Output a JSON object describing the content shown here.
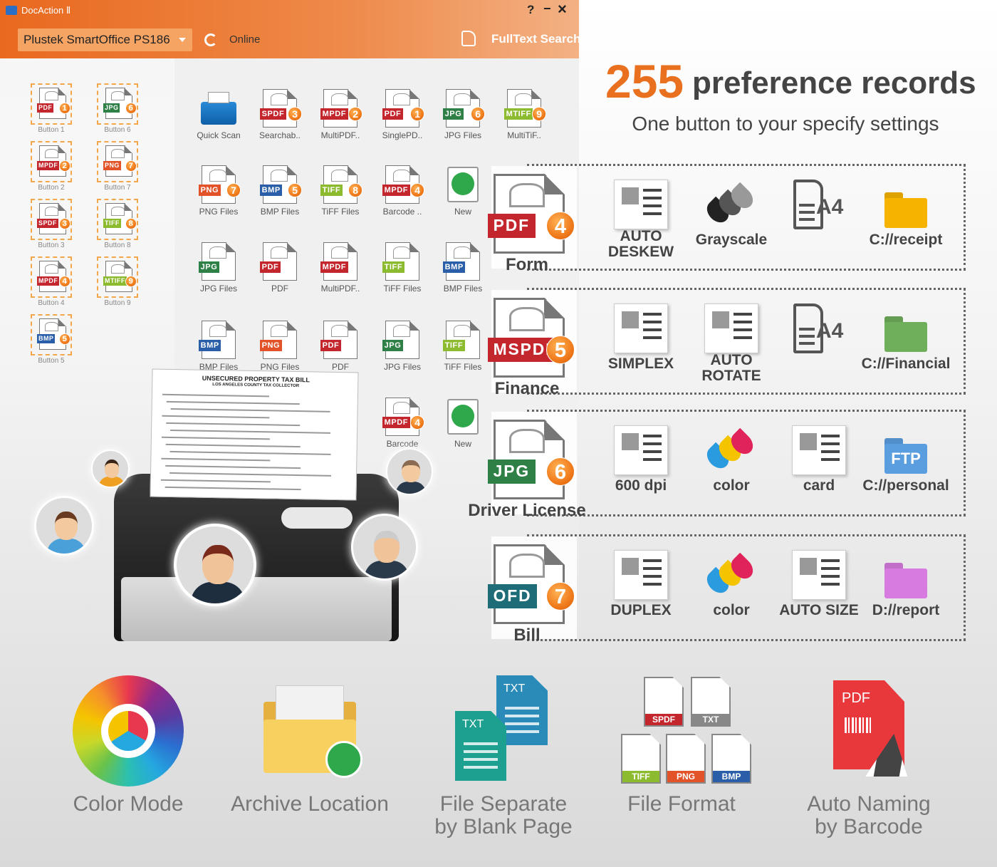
{
  "window": {
    "title": "DocAction Ⅱ",
    "help": "?",
    "minimize": "−",
    "close": "×",
    "device": "Plustek SmartOffice PS186",
    "status": "Online",
    "search": "FullText Search"
  },
  "badge_colors": {
    "PDF": "#c4262e",
    "SPDF": "#c4262e",
    "MPDF": "#c4262e",
    "MSPDF": "#c4262e",
    "JPG": "#2f8047",
    "PNG": "#e2532a",
    "TIFF": "#8dbb2f",
    "MTIFF": "#8dbb2f",
    "BMP": "#2a5ea8",
    "OFD": "#1d6c78"
  },
  "buttons": [
    {
      "badge": "PDF",
      "number": 1,
      "label": "Button 1"
    },
    {
      "badge": "JPG",
      "number": 6,
      "label": "Button 6"
    },
    {
      "badge": "MPDF",
      "number": 2,
      "label": "Button 2"
    },
    {
      "badge": "PNG",
      "number": 7,
      "label": "Button 7"
    },
    {
      "badge": "SPDF",
      "number": 3,
      "label": "Button 3"
    },
    {
      "badge": "TIFF",
      "number": 8,
      "label": "Button 8"
    },
    {
      "badge": "MPDF",
      "number": 4,
      "label": "Button 4"
    },
    {
      "badge": "MTIFF",
      "number": 9,
      "label": "Button 9"
    },
    {
      "badge": "BMP",
      "number": 5,
      "label": "Button 5"
    }
  ],
  "grid": {
    "rows": [
      [
        {
          "label": "Quick Scan"
        },
        {
          "badge": "SPDF",
          "number": 3,
          "label": "Searchab.."
        },
        {
          "badge": "MPDF",
          "number": 2,
          "label": "MultiPDF.."
        },
        {
          "badge": "PDF",
          "number": 1,
          "label": "SinglePD.."
        },
        {
          "badge": "JPG",
          "number": 6,
          "label": "JPG Files"
        },
        {
          "badge": "MTIFF",
          "number": 9,
          "label": "MultiTiF.."
        }
      ],
      [
        {
          "badge": "PNG",
          "number": 7,
          "label": "PNG Files"
        },
        {
          "badge": "BMP",
          "number": 5,
          "label": "BMP Files"
        },
        {
          "badge": "TIFF",
          "number": 8,
          "label": "TiFF Files"
        },
        {
          "badge": "MPDF",
          "number": 4,
          "label": "Barcode .."
        },
        {
          "label": "New"
        }
      ],
      [
        {
          "badge": "JPG",
          "label": "JPG Files"
        },
        {
          "badge": "PDF",
          "label": "PDF"
        },
        {
          "badge": "MPDF",
          "label": "MultiPDF.."
        },
        {
          "badge": "TIFF",
          "label": "TiFF Files"
        },
        {
          "badge": "BMP",
          "label": "BMP Files"
        }
      ],
      [
        {
          "badge": "BMP",
          "label": "BMP Files"
        },
        {
          "badge": "PNG",
          "label": "PNG Files"
        },
        {
          "badge": "PDF",
          "label": "PDF"
        },
        {
          "badge": "JPG",
          "label": "JPG Files"
        },
        {
          "badge": "TIFF",
          "label": "TiFF Files"
        }
      ],
      [
        {
          "badge": "MPDF",
          "number": 4,
          "label": "Barcode"
        },
        {
          "label": "New"
        }
      ]
    ]
  },
  "bill": {
    "title": "UNSECURED PROPERTY TAX BILL",
    "subtitle": "LOS ANGELES COUNTY TAX COLLECTOR"
  },
  "headline": {
    "number": "255",
    "text": "preference records",
    "subtitle": "One button to your specify settings"
  },
  "profiles": [
    {
      "badge": "PDF",
      "number": 4,
      "name": "Form",
      "folder_color": "#f6b400",
      "settings": [
        {
          "label": [
            "AUTO",
            "DESKEW"
          ]
        },
        {
          "label": "Grayscale",
          "colors": [
            "#222222",
            "#555555",
            "#999999"
          ]
        },
        {
          "label": "",
          "icon_text": "A4"
        },
        {
          "label": "C://receipt"
        }
      ]
    },
    {
      "badge": "MSPDF",
      "number": 5,
      "name": "Finance",
      "folder_color": "#6fae5a",
      "settings": [
        {
          "label": "SIMPLEX"
        },
        {
          "label": [
            "AUTO",
            "ROTATE"
          ]
        },
        {
          "icon_text": "A4"
        },
        {
          "label": "C://Financial"
        }
      ]
    },
    {
      "badge": "JPG",
      "number": 6,
      "name": "Driver License",
      "folder_color": "#5a9ee0",
      "settings": [
        {
          "label": "600 dpi"
        },
        {
          "label": "color",
          "colors": [
            "#2b9be0",
            "#f5c400",
            "#e0245a"
          ]
        },
        {
          "label": "card"
        },
        {
          "label": "C://personal",
          "icon_text": "FTP"
        }
      ]
    },
    {
      "badge": "OFD",
      "number": 7,
      "name": "Bill",
      "folder_color": "#d77be0",
      "settings": [
        {
          "label": "DUPLEX"
        },
        {
          "label": "color",
          "colors": [
            "#2b9be0",
            "#f5c400",
            "#e0245a"
          ]
        },
        {
          "label": "AUTO SIZE"
        },
        {
          "label": "D://report"
        }
      ]
    }
  ],
  "features": [
    {
      "label": [
        "Color Mode"
      ]
    },
    {
      "label": [
        "Archive Location"
      ]
    },
    {
      "label": [
        "File Separate",
        "by Blank Page"
      ],
      "icon_texts": [
        "TXT",
        "TXT"
      ]
    },
    {
      "label": [
        "File Format"
      ],
      "icon_texts": [
        "SPDF",
        "TXT",
        "TIFF",
        "PNG",
        "BMP"
      ]
    },
    {
      "label": [
        "Auto Naming",
        "by Barcode"
      ],
      "icon_texts": [
        "PDF"
      ]
    }
  ]
}
